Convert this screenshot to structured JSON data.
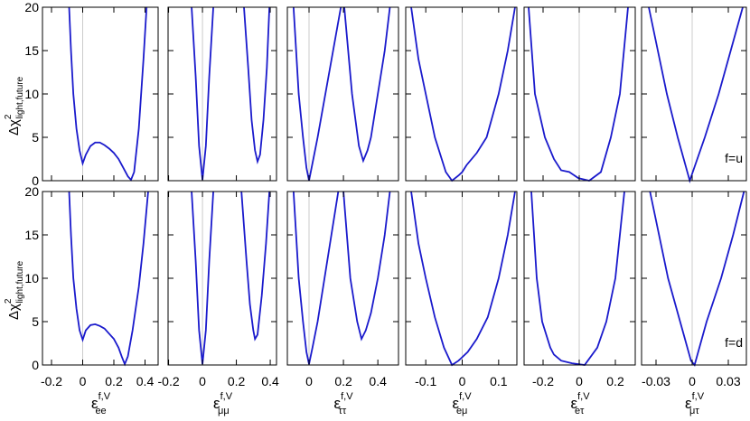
{
  "chart_data": [
    {
      "type": "line",
      "x": [
        -0.087,
        -0.075,
        -0.06,
        -0.04,
        -0.02,
        0,
        0.02,
        0.05,
        0.08,
        0.11,
        0.14,
        0.17,
        0.2,
        0.23,
        0.26,
        0.29,
        0.31,
        0.33,
        0.36,
        0.39,
        0.41
      ],
      "series": [
        {
          "color": "#1a1acc",
          "values": [
            20,
            15,
            10,
            6,
            3.5,
            2,
            3,
            4,
            4.4,
            4.4,
            4.1,
            3.7,
            3.2,
            2.5,
            1.5,
            0.5,
            0.1,
            1,
            6,
            14,
            20
          ]
        }
      ],
      "xlim": [
        -0.258,
        0.484
      ],
      "xticks": [
        -0.2,
        0,
        0.2,
        0.4
      ],
      "ylim": [
        0,
        20
      ],
      "yticks": [
        0,
        5,
        10,
        15,
        20
      ],
      "zero_line": true,
      "ylabel": {
        "symbol": "Δχ",
        "sup": "2",
        "sub": "light,future"
      }
    },
    {
      "type": "line",
      "x": [
        -0.064,
        -0.04,
        -0.02,
        0,
        0.02,
        0.04,
        0.064,
        0.15,
        0.245,
        0.27,
        0.29,
        0.31,
        0.325,
        0.34,
        0.36,
        0.38,
        0.395
      ],
      "series": [
        {
          "color": "#1a1acc",
          "values": [
            20,
            12,
            4,
            0.1,
            4,
            12,
            20,
            null,
            20,
            13,
            7,
            3.5,
            2.2,
            3,
            7,
            13,
            20
          ]
        }
      ],
      "xlim": [
        -0.203,
        0.437
      ],
      "xticks": [
        -0.2,
        0,
        0.2,
        0.4
      ],
      "ylim": [
        0,
        20
      ],
      "yticks": [
        0,
        5,
        10,
        15,
        20
      ],
      "zero_line": true
    },
    {
      "type": "line",
      "x": [
        -0.09,
        -0.06,
        -0.035,
        -0.015,
        0,
        0.02,
        0.05,
        0.095,
        0.14,
        0.185,
        0.195,
        0.205,
        0.25,
        0.29,
        0.315,
        0.34,
        0.36,
        0.4,
        0.44,
        0.47
      ],
      "series": [
        {
          "color": "#1a1acc",
          "values": [
            20,
            10,
            5,
            1.5,
            0,
            2,
            5,
            10,
            15,
            20,
            null,
            20,
            10,
            4,
            2.3,
            3.5,
            5,
            10,
            15,
            20
          ]
        }
      ],
      "xlim": [
        -0.126,
        0.52
      ],
      "xticks": [
        0,
        0.2,
        0.4
      ],
      "ylim": [
        0,
        20
      ],
      "yticks": [
        0,
        5,
        10,
        15,
        20
      ],
      "zero_line": true
    },
    {
      "type": "line",
      "x": [
        -0.14,
        -0.12,
        -0.1,
        -0.075,
        -0.045,
        -0.028,
        -0.01,
        0,
        0.012,
        0.04,
        0.067,
        0.1,
        0.125,
        0.145
      ],
      "series": [
        {
          "color": "#1a1acc",
          "values": [
            20,
            14,
            10,
            5,
            1,
            0,
            0.6,
            1,
            1.8,
            3.2,
            5,
            10,
            15,
            20
          ]
        }
      ],
      "xlim": [
        -0.155,
        0.15
      ],
      "xticks": [
        -0.1,
        0,
        0.1
      ],
      "ylim": [
        0,
        20
      ],
      "yticks": [
        0,
        5,
        10,
        15,
        20
      ],
      "zero_line": true
    },
    {
      "type": "line",
      "x": [
        -0.28,
        -0.245,
        -0.19,
        -0.14,
        -0.1,
        -0.055,
        -0.005,
        0.055,
        0.12,
        0.175,
        0.225,
        0.27
      ],
      "series": [
        {
          "color": "#1a1acc",
          "values": [
            20,
            10,
            5,
            2.5,
            1.2,
            1,
            0.3,
            0,
            1,
            5,
            10,
            20
          ]
        }
      ],
      "xlim": [
        -0.305,
        0.31
      ],
      "xticks": [
        -0.2,
        0,
        0.2
      ],
      "ylim": [
        0,
        20
      ],
      "yticks": [
        0,
        5,
        10,
        15,
        20
      ],
      "zero_line": true
    },
    {
      "type": "line",
      "x": [
        -0.036,
        -0.021,
        -0.012,
        -0.002,
        0.0105,
        0.022,
        0.032,
        0.042
      ],
      "series": [
        {
          "color": "#1a1acc",
          "values": [
            20,
            10,
            5,
            0,
            5,
            10,
            15,
            20
          ]
        }
      ],
      "xlim": [
        -0.042,
        0.045
      ],
      "xticks": [
        -0.03,
        0,
        0.03
      ],
      "ylim": [
        0,
        20
      ],
      "yticks": [
        0,
        5,
        10,
        15,
        20
      ],
      "zero_line": true,
      "annotation": "f=u"
    },
    {
      "type": "line",
      "x": [
        -0.087,
        -0.075,
        -0.06,
        -0.04,
        -0.02,
        0,
        0.02,
        0.05,
        0.08,
        0.11,
        0.14,
        0.17,
        0.2,
        0.23,
        0.25,
        0.27,
        0.29,
        0.32,
        0.36,
        0.39,
        0.42
      ],
      "series": [
        {
          "color": "#1a1acc",
          "values": [
            20,
            15,
            10,
            6.5,
            4,
            2.9,
            4,
            4.6,
            4.7,
            4.5,
            4.2,
            3.6,
            3,
            2,
            1,
            0.1,
            1,
            4,
            9,
            14,
            20
          ]
        }
      ],
      "xlim": [
        -0.258,
        0.484
      ],
      "xticks": [
        -0.2,
        0,
        0.2,
        0.4
      ],
      "ylim": [
        0,
        20
      ],
      "yticks": [
        0,
        5,
        10,
        15,
        20
      ],
      "zero_line": true,
      "ylabel": {
        "symbol": "Δχ",
        "sup": "2",
        "sub": "light,future"
      },
      "xlabel": {
        "symbol": "ε",
        "sup": "f,V",
        "sub": "ee"
      }
    },
    {
      "type": "line",
      "x": [
        -0.064,
        -0.04,
        -0.02,
        0,
        0.02,
        0.04,
        0.064,
        0.15,
        0.23,
        0.26,
        0.28,
        0.3,
        0.31,
        0.325,
        0.35,
        0.375,
        0.395
      ],
      "series": [
        {
          "color": "#1a1acc",
          "values": [
            20,
            12,
            4,
            0.1,
            4,
            12,
            20,
            null,
            20,
            12,
            7,
            4,
            3,
            3.5,
            8,
            14,
            20
          ]
        }
      ],
      "xlim": [
        -0.203,
        0.437
      ],
      "xticks": [
        -0.2,
        0,
        0.2,
        0.4
      ],
      "ylim": [
        0,
        20
      ],
      "yticks": [
        0,
        5,
        10,
        15,
        20
      ],
      "zero_line": true,
      "xlabel": {
        "symbol": "ε",
        "sup": "f,V",
        "sub": "μμ"
      }
    },
    {
      "type": "line",
      "x": [
        -0.09,
        -0.06,
        -0.035,
        -0.015,
        0,
        0.02,
        0.05,
        0.09,
        0.13,
        0.17,
        0.185,
        0.2,
        0.24,
        0.28,
        0.305,
        0.33,
        0.36,
        0.4,
        0.44,
        0.47
      ],
      "series": [
        {
          "color": "#1a1acc",
          "values": [
            20,
            10,
            5,
            1.5,
            0.1,
            2,
            5,
            10,
            15,
            20,
            null,
            20,
            10,
            5,
            3,
            4,
            6,
            10,
            15,
            20
          ]
        }
      ],
      "xlim": [
        -0.126,
        0.52
      ],
      "xticks": [
        0,
        0.2,
        0.4
      ],
      "ylim": [
        0,
        20
      ],
      "yticks": [
        0,
        5,
        10,
        15,
        20
      ],
      "zero_line": true,
      "xlabel": {
        "symbol": "ε",
        "sup": "f,V",
        "sub": "ττ"
      }
    },
    {
      "type": "line",
      "x": [
        -0.14,
        -0.12,
        -0.1,
        -0.075,
        -0.05,
        -0.028,
        -0.01,
        0,
        0.015,
        0.04,
        0.07,
        0.1,
        0.125,
        0.145
      ],
      "series": [
        {
          "color": "#1a1acc",
          "values": [
            20,
            14,
            10,
            5.5,
            2,
            0,
            0.5,
            0.9,
            1.5,
            3,
            5.5,
            10,
            15,
            20
          ]
        }
      ],
      "xlim": [
        -0.155,
        0.15
      ],
      "xticks": [
        -0.1,
        0,
        0.1
      ],
      "ylim": [
        0,
        20
      ],
      "yticks": [
        0,
        5,
        10,
        15,
        20
      ],
      "zero_line": true,
      "xlabel": {
        "symbol": "ε",
        "sup": "f,V",
        "sub": "eμ"
      }
    },
    {
      "type": "line",
      "x": [
        -0.265,
        -0.235,
        -0.205,
        -0.16,
        -0.14,
        -0.1,
        -0.04,
        0.03,
        0.1,
        0.15,
        0.2,
        0.25
      ],
      "series": [
        {
          "color": "#1a1acc",
          "values": [
            20,
            10,
            5,
            2,
            1.2,
            0.5,
            0.2,
            0,
            2,
            5,
            10,
            20
          ]
        }
      ],
      "xlim": [
        -0.305,
        0.31
      ],
      "xticks": [
        -0.2,
        0,
        0.2
      ],
      "ylim": [
        0,
        20
      ],
      "yticks": [
        0,
        5,
        10,
        15,
        20
      ],
      "zero_line": true,
      "xlabel": {
        "symbol": "ε",
        "sup": "f,V",
        "sub": "eτ"
      }
    },
    {
      "type": "line",
      "x": [
        -0.035,
        -0.02,
        -0.01,
        -0.001,
        0.002,
        0.012,
        0.024,
        0.034,
        0.043
      ],
      "series": [
        {
          "color": "#1a1acc",
          "values": [
            20,
            10,
            5,
            0.5,
            0,
            5,
            10,
            15,
            20
          ]
        }
      ],
      "xlim": [
        -0.042,
        0.045
      ],
      "xticks": [
        -0.03,
        0,
        0.03
      ],
      "ylim": [
        0,
        20
      ],
      "yticks": [
        0,
        5,
        10,
        15,
        20
      ],
      "zero_line": true,
      "annotation": "f=d",
      "xlabel": {
        "symbol": "ε",
        "sup": "f,V",
        "sub": "μτ"
      }
    }
  ]
}
